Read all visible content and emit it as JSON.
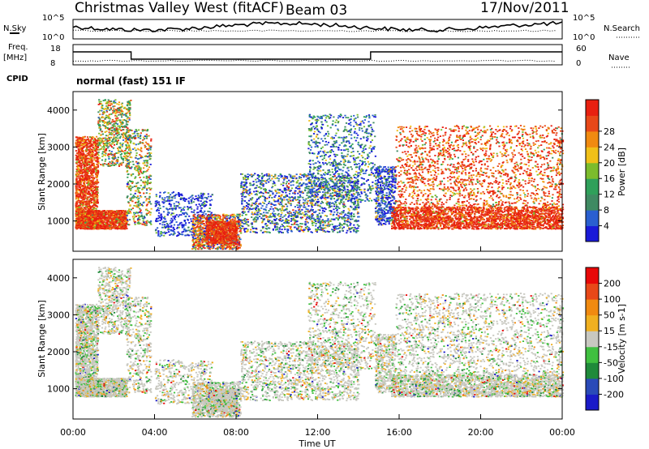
{
  "header": {
    "station": "Christmas Valley West (fitACF)",
    "beam": "Beam 03",
    "date": "17/Nov/2011"
  },
  "noise_panel": {
    "left_label": "N.Sky",
    "right_label": "N.Search",
    "y_ticks": [
      "10^5",
      "10^0"
    ]
  },
  "freq_panel": {
    "left_label_1": "Freq.",
    "left_label_2": "[MHz]",
    "right_label": "Nave",
    "left_ticks": [
      "18",
      "8"
    ],
    "right_ticks": [
      "60",
      "0"
    ]
  },
  "cpid": {
    "label": "CPID",
    "mode": "normal (fast) 151 IF"
  },
  "chart_data": [
    {
      "type": "heatmap",
      "name": "power",
      "ylabel": "Slant Range [km]",
      "ylim": [
        180,
        4500
      ],
      "yticks": [
        1000,
        2000,
        3000,
        4000
      ],
      "xlim": [
        0,
        24
      ],
      "colorbar_label": "Power [dB]",
      "colorbar_ticks": [
        4,
        8,
        12,
        16,
        20,
        24,
        28
      ],
      "colors": [
        "#1a1ad8",
        "#2a5fd0",
        "#3f8a62",
        "#2fa05a",
        "#7cbc2c",
        "#f0c018",
        "#f08a10",
        "#e84818",
        "#e82010"
      ]
    },
    {
      "type": "heatmap",
      "name": "velocity",
      "ylabel": "Slant Range [km]",
      "ylim": [
        180,
        4500
      ],
      "yticks": [
        1000,
        2000,
        3000,
        4000
      ],
      "xlim": [
        0,
        24
      ],
      "colorbar_label": "Velocity [m s-1]",
      "colorbar_ticks": [
        200,
        100,
        50,
        15,
        -15,
        -50,
        -100,
        -200
      ],
      "colors": [
        "#1a1ac8",
        "#2a4ab8",
        "#1f8a3a",
        "#40c040",
        "#c8c8c0",
        "#f0b020",
        "#f08a10",
        "#e84818",
        "#e80808"
      ]
    }
  ],
  "x_axis": {
    "label": "Time UT",
    "ticks": [
      "00:00",
      "04:00",
      "08:00",
      "12:00",
      "16:00",
      "20:00",
      "00:00"
    ]
  }
}
